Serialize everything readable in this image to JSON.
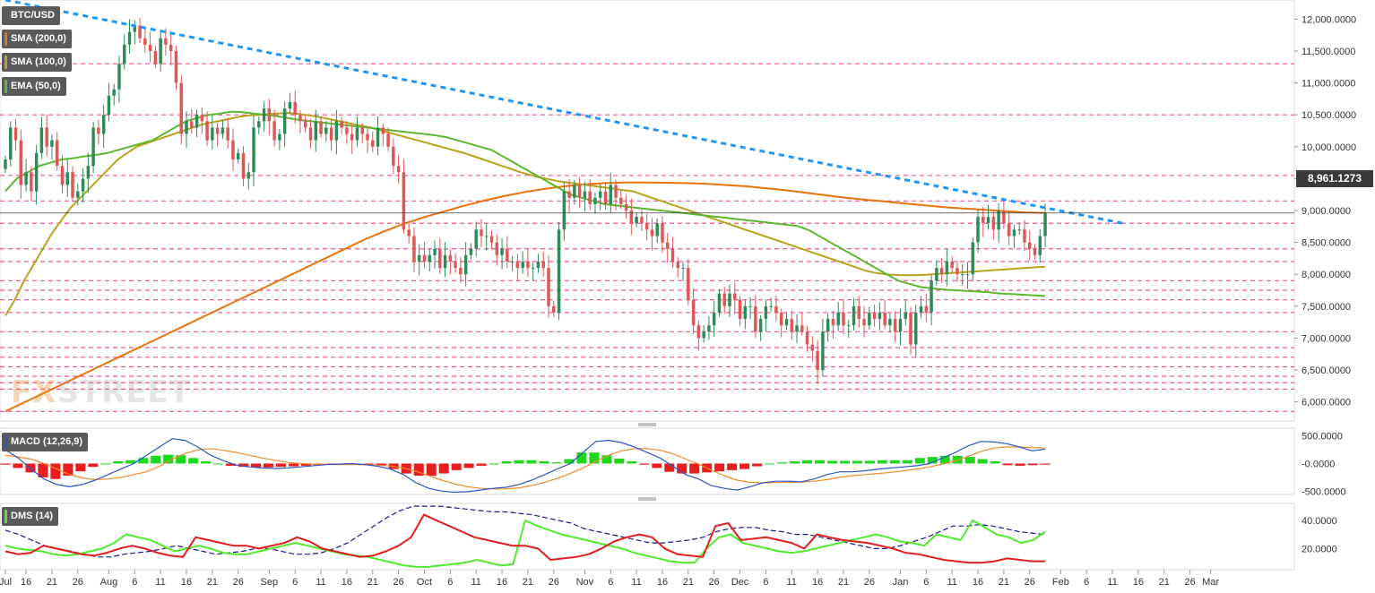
{
  "symbol": "BTC/USD",
  "indicators": {
    "sma200": "SMA (200,0)",
    "sma100": "SMA (100,0)",
    "ema50": "EMA (50,0)",
    "macd": "MACD (12,26,9)",
    "dms": "DMS (14)"
  },
  "last_price": "8,961.1273",
  "watermark": {
    "fx": "FX",
    "street": "STREET"
  },
  "colors": {
    "up": "#2e8b57",
    "down": "#e05555",
    "sma200": "#e8720c",
    "sma100": "#b8a31c",
    "ema50": "#5cb82e",
    "trendline": "#2196f3",
    "level": "#f0509a",
    "macd_line": "#2a56c6",
    "signal_line": "#f08a2a",
    "hist_pos": "#1ed81e",
    "hist_neg": "#e81e1e",
    "dmi_plus": "#52e82e",
    "dmi_minus": "#e01e1e",
    "adx": "#1a1a8c"
  },
  "chart_data": [
    {
      "type": "candlestick",
      "title": "BTC/USD",
      "y_ticks": [
        6000,
        6500,
        7000,
        7500,
        8000,
        8500,
        9000,
        9500,
        10000,
        10500,
        11000,
        11500,
        12000
      ],
      "y_tick_labels": [
        "6,000.0000",
        "6,500.0000",
        "7,000.0000",
        "7,500.0000",
        "8,000.0000",
        "8,500.0000",
        "9,000.0000",
        "9,500.0000",
        "10,000.0000",
        "10,500.0000",
        "11,000.0000",
        "11,500.0000",
        "12,000.0000"
      ],
      "ylim": [
        5700,
        12300
      ],
      "x_range_days": [
        0,
        245
      ],
      "x_ticks": [
        {
          "day": 0,
          "label": "Jul"
        },
        {
          "day": 4,
          "label": "16"
        },
        {
          "day": 9,
          "label": "21"
        },
        {
          "day": 14,
          "label": "26"
        },
        {
          "day": 20,
          "label": "Aug"
        },
        {
          "day": 25,
          "label": "6"
        },
        {
          "day": 30,
          "label": "11"
        },
        {
          "day": 35,
          "label": "16"
        },
        {
          "day": 40,
          "label": "21"
        },
        {
          "day": 45,
          "label": "26"
        },
        {
          "day": 51,
          "label": "Sep"
        },
        {
          "day": 56,
          "label": "6"
        },
        {
          "day": 61,
          "label": "11"
        },
        {
          "day": 66,
          "label": "16"
        },
        {
          "day": 71,
          "label": "21"
        },
        {
          "day": 76,
          "label": "26"
        },
        {
          "day": 81,
          "label": "Oct"
        },
        {
          "day": 86,
          "label": "6"
        },
        {
          "day": 91,
          "label": "11"
        },
        {
          "day": 96,
          "label": "16"
        },
        {
          "day": 101,
          "label": "21"
        },
        {
          "day": 106,
          "label": "26"
        },
        {
          "day": 112,
          "label": "Nov"
        },
        {
          "day": 117,
          "label": "6"
        },
        {
          "day": 122,
          "label": "11"
        },
        {
          "day": 127,
          "label": "16"
        },
        {
          "day": 132,
          "label": "21"
        },
        {
          "day": 137,
          "label": "26"
        },
        {
          "day": 142,
          "label": "Dec"
        },
        {
          "day": 147,
          "label": "6"
        },
        {
          "day": 152,
          "label": "11"
        },
        {
          "day": 157,
          "label": "16"
        },
        {
          "day": 162,
          "label": "21"
        },
        {
          "day": 167,
          "label": "26"
        },
        {
          "day": 173,
          "label": "Jan"
        },
        {
          "day": 178,
          "label": "6"
        },
        {
          "day": 183,
          "label": "11"
        },
        {
          "day": 188,
          "label": "16"
        },
        {
          "day": 193,
          "label": "21"
        },
        {
          "day": 198,
          "label": "26"
        },
        {
          "day": 204,
          "label": "Feb"
        },
        {
          "day": 209,
          "label": "6"
        },
        {
          "day": 214,
          "label": "11"
        },
        {
          "day": 219,
          "label": "16"
        },
        {
          "day": 224,
          "label": "21"
        },
        {
          "day": 229,
          "label": "26"
        },
        {
          "day": 233,
          "label": "Mar"
        }
      ],
      "horizontal_levels": [
        11300,
        10500,
        9550,
        9150,
        8800,
        8400,
        8200,
        7900,
        7750,
        7600,
        7400,
        7100,
        6850,
        6700,
        6550,
        6400,
        6300,
        6200,
        5850
      ],
      "trendline": {
        "from": {
          "day": 0,
          "price": 12300
        },
        "to": {
          "day": 216,
          "price": 8800
        }
      },
      "last_price": 8961.1273,
      "closes": [
        9800,
        10300,
        10100,
        9400,
        9600,
        9300,
        9900,
        10300,
        10000,
        10100,
        9700,
        9400,
        9600,
        9200,
        9300,
        9500,
        9700,
        10300,
        10200,
        10500,
        10800,
        10900,
        11300,
        11600,
        11800,
        11900,
        11700,
        11600,
        11500,
        11300,
        11700,
        11600,
        11500,
        11000,
        10200,
        10400,
        10300,
        10500,
        10400,
        10100,
        10300,
        10200,
        10300,
        10100,
        9800,
        9900,
        9500,
        9600,
        10300,
        10400,
        10600,
        10400,
        10100,
        10200,
        10600,
        10700,
        10500,
        10400,
        10300,
        10100,
        10400,
        10200,
        10300,
        10100,
        10400,
        10300,
        10200,
        10100,
        10300,
        10200,
        10100,
        10000,
        10300,
        10200,
        10000,
        9700,
        9600,
        8700,
        8600,
        8200,
        8300,
        8200,
        8300,
        8400,
        8100,
        8300,
        8200,
        8100,
        8000,
        8300,
        8400,
        8700,
        8600,
        8600,
        8500,
        8300,
        8400,
        8200,
        8200,
        8100,
        8200,
        8100,
        8100,
        8200,
        8100,
        7500,
        7400,
        8700,
        9300,
        9200,
        9400,
        9200,
        9300,
        9100,
        9200,
        9300,
        9100,
        9400,
        9200,
        9100,
        9000,
        8800,
        8900,
        8800,
        8700,
        8600,
        8800,
        8500,
        8400,
        8200,
        8100,
        8100,
        7600,
        7200,
        7000,
        7100,
        7200,
        7400,
        7700,
        7500,
        7700,
        7600,
        7300,
        7500,
        7500,
        7100,
        7300,
        7500,
        7500,
        7400,
        7200,
        7300,
        7100,
        7200,
        7100,
        6900,
        6800,
        6500,
        7100,
        7300,
        7200,
        7400,
        7200,
        7200,
        7500,
        7300,
        7200,
        7400,
        7300,
        7400,
        7200,
        7300,
        7100,
        7300,
        7400,
        6900,
        7400,
        7500,
        7400,
        7900,
        8100,
        8000,
        8200,
        8100,
        8000,
        8000,
        8000,
        8500,
        8900,
        8800,
        8900,
        8700,
        9000,
        8800,
        8600,
        8700,
        8700,
        8500,
        8400,
        8300,
        8600,
        8961
      ],
      "ema50": [
        9300,
        9500,
        9600,
        9700,
        9750,
        9800,
        9820,
        9850,
        9870,
        9900,
        9950,
        10000,
        10050,
        10100,
        10200,
        10300,
        10400,
        10450,
        10500,
        10520,
        10550,
        10540,
        10520,
        10500,
        10480,
        10450,
        10420,
        10400,
        10380,
        10360,
        10340,
        10320,
        10300,
        10280,
        10260,
        10240,
        10220,
        10200,
        10180,
        10150,
        10100,
        10050,
        10000,
        9950,
        9850,
        9750,
        9650,
        9550,
        9450,
        9350,
        9250,
        9200,
        9150,
        9100,
        9080,
        9060,
        9040,
        9020,
        9000,
        8980,
        8960,
        8940,
        8920,
        8900,
        8880,
        8860,
        8840,
        8820,
        8800,
        8780,
        8760,
        8700,
        8600,
        8500,
        8400,
        8300,
        8200,
        8100,
        8000,
        7900,
        7850,
        7800,
        7780,
        7760,
        7750,
        7740,
        7730,
        7720,
        7700,
        7690,
        7680,
        7670,
        7660
      ],
      "sma100": [
        7350,
        7600,
        7900,
        8150,
        8400,
        8650,
        8850,
        9050,
        9200,
        9350,
        9500,
        9650,
        9800,
        9900,
        10000,
        10050,
        10100,
        10150,
        10200,
        10250,
        10300,
        10350,
        10380,
        10410,
        10440,
        10470,
        10490,
        10500,
        10510,
        10520,
        10530,
        10520,
        10500,
        10480,
        10450,
        10420,
        10390,
        10360,
        10330,
        10300,
        10260,
        10220,
        10180,
        10140,
        10100,
        10060,
        10020,
        9980,
        9940,
        9900,
        9850,
        9800,
        9750,
        9700,
        9650,
        9600,
        9560,
        9520,
        9490,
        9460,
        9440,
        9420,
        9400,
        9380,
        9360,
        9340,
        9320,
        9300,
        9250,
        9200,
        9150,
        9100,
        9050,
        9000,
        8950,
        8900,
        8850,
        8800,
        8750,
        8700,
        8650,
        8600,
        8550,
        8500,
        8450,
        8400,
        8350,
        8300,
        8250,
        8200,
        8150,
        8100,
        8050,
        8020,
        8000,
        7990,
        7985,
        7985,
        7990,
        8000,
        8010,
        8020,
        8030,
        8040,
        8050,
        8060,
        8070,
        8080,
        8090,
        8100,
        8110,
        8120
      ],
      "sma200": [
        5850,
        6000,
        6150,
        6300,
        6450,
        6600,
        6750,
        6900,
        7050,
        7200,
        7350,
        7500,
        7650,
        7800,
        7950,
        8100,
        8250,
        8400,
        8550,
        8680,
        8800,
        8900,
        8990,
        9080,
        9160,
        9230,
        9290,
        9340,
        9380,
        9410,
        9430,
        9440,
        9440,
        9435,
        9430,
        9420,
        9400,
        9380,
        9350,
        9320,
        9280,
        9240,
        9200,
        9170,
        9140,
        9110,
        9080,
        9050,
        9030,
        9010,
        8990,
        8970,
        8960
      ]
    },
    {
      "type": "macd",
      "title": "MACD (12,26,9)",
      "y_ticks": [
        -500,
        0,
        500
      ],
      "y_tick_labels": [
        "-500.0000",
        "-0.0000",
        "500.0000"
      ],
      "ylim": [
        -560,
        640
      ],
      "macd": [
        250,
        100,
        -100,
        -280,
        -380,
        -420,
        -380,
        -300,
        -200,
        -100,
        0,
        150,
        300,
        450,
        420,
        300,
        150,
        50,
        -30,
        -60,
        -80,
        -90,
        -80,
        -60,
        -40,
        -20,
        -10,
        0,
        -20,
        -50,
        -100,
        -200,
        -350,
        -450,
        -500,
        -520,
        -510,
        -480,
        -450,
        -430,
        -380,
        -300,
        -200,
        -100,
        0,
        200,
        400,
        420,
        380,
        300,
        200,
        100,
        -50,
        -200,
        -280,
        -400,
        -450,
        -480,
        -420,
        -350,
        -320,
        -320,
        -330,
        -280,
        -200,
        -150,
        -150,
        -130,
        -100,
        -80,
        -60,
        -40,
        0,
        100,
        200,
        320,
        400,
        390,
        360,
        300,
        230,
        260
      ],
      "signal": [
        150,
        120,
        80,
        0,
        -100,
        -200,
        -260,
        -290,
        -280,
        -250,
        -200,
        -150,
        -50,
        80,
        180,
        250,
        270,
        240,
        200,
        150,
        100,
        60,
        20,
        0,
        -10,
        -15,
        -20,
        -20,
        -22,
        -30,
        -45,
        -80,
        -140,
        -220,
        -300,
        -370,
        -420,
        -450,
        -460,
        -460,
        -440,
        -400,
        -340,
        -270,
        -180,
        -80,
        40,
        150,
        230,
        270,
        270,
        240,
        180,
        80,
        -10,
        -120,
        -220,
        -300,
        -340,
        -350,
        -345,
        -340,
        -335,
        -320,
        -290,
        -250,
        -220,
        -200,
        -180,
        -160,
        -130,
        -100,
        -60,
        -10,
        50,
        130,
        220,
        280,
        300,
        300,
        290,
        280
      ],
      "histogram": [
        -20,
        -80,
        -160,
        -250,
        -280,
        -220,
        -140,
        -60,
        0,
        40,
        60,
        100,
        140,
        160,
        150,
        100,
        40,
        0,
        -40,
        -60,
        -70,
        -70,
        -60,
        -50,
        -40,
        -30,
        -20,
        -10,
        -5,
        -10,
        -40,
        -100,
        -180,
        -220,
        -220,
        -180,
        -120,
        -80,
        -40,
        0,
        40,
        60,
        60,
        40,
        20,
        80,
        200,
        200,
        150,
        90,
        40,
        -20,
        -80,
        -150,
        -180,
        -180,
        -160,
        -140,
        -120,
        -100,
        -50,
        0,
        20,
        40,
        60,
        60,
        50,
        50,
        50,
        50,
        60,
        60,
        60,
        100,
        120,
        140,
        140,
        120,
        80,
        40,
        -30,
        -40,
        -30,
        -20
      ]
    },
    {
      "type": "dmi",
      "title": "DMS (14)",
      "y_ticks": [
        20,
        40
      ],
      "y_tick_labels": [
        "20.0000",
        "40.0000"
      ],
      "ylim": [
        5,
        52
      ],
      "plus_di": [
        22,
        20,
        19,
        18,
        16,
        15,
        16,
        18,
        20,
        24,
        30,
        28,
        26,
        22,
        18,
        20,
        22,
        20,
        17,
        16,
        16,
        18,
        20,
        22,
        24,
        22,
        20,
        18,
        16,
        15,
        14,
        12,
        10,
        8,
        7,
        7,
        8,
        9,
        10,
        12,
        10,
        8,
        9,
        40,
        36,
        33,
        30,
        28,
        26,
        24,
        22,
        20,
        17,
        15,
        13,
        11,
        10,
        10,
        20,
        28,
        30,
        24,
        22,
        20,
        18,
        17,
        18,
        20,
        22,
        24,
        26,
        28,
        30,
        28,
        25,
        24,
        22,
        30,
        28,
        26,
        40,
        35,
        30,
        28,
        24,
        26,
        32
      ],
      "minus_di": [
        18,
        16,
        17,
        22,
        20,
        18,
        16,
        15,
        17,
        20,
        22,
        20,
        17,
        15,
        14,
        28,
        26,
        24,
        22,
        22,
        20,
        22,
        24,
        28,
        25,
        20,
        18,
        16,
        14,
        15,
        18,
        22,
        28,
        44,
        40,
        36,
        32,
        28,
        26,
        24,
        22,
        22,
        20,
        12,
        13,
        14,
        16,
        20,
        25,
        28,
        30,
        28,
        20,
        16,
        15,
        14,
        36,
        38,
        26,
        27,
        28,
        26,
        24,
        20,
        30,
        28,
        26,
        25,
        24,
        22,
        20,
        17,
        16,
        14,
        12,
        11,
        10,
        10,
        11,
        13,
        12,
        11,
        11
      ],
      "adx": [
        33,
        30,
        26,
        22,
        20,
        18,
        16,
        14,
        14,
        16,
        17,
        18,
        20,
        22,
        20,
        18,
        16,
        17,
        18,
        20,
        20,
        18,
        16,
        16,
        17,
        20,
        24,
        30,
        36,
        42,
        47,
        50,
        50,
        50,
        49,
        48,
        47,
        46,
        46,
        45,
        44,
        42,
        40,
        38,
        34,
        32,
        30,
        28,
        26,
        24,
        24,
        25,
        26,
        28,
        32,
        34,
        35,
        35,
        33,
        32,
        30,
        30,
        28,
        26,
        24,
        22,
        20,
        20,
        22,
        25,
        28,
        32,
        36,
        36,
        37,
        36,
        34,
        32,
        31,
        30
      ]
    }
  ]
}
